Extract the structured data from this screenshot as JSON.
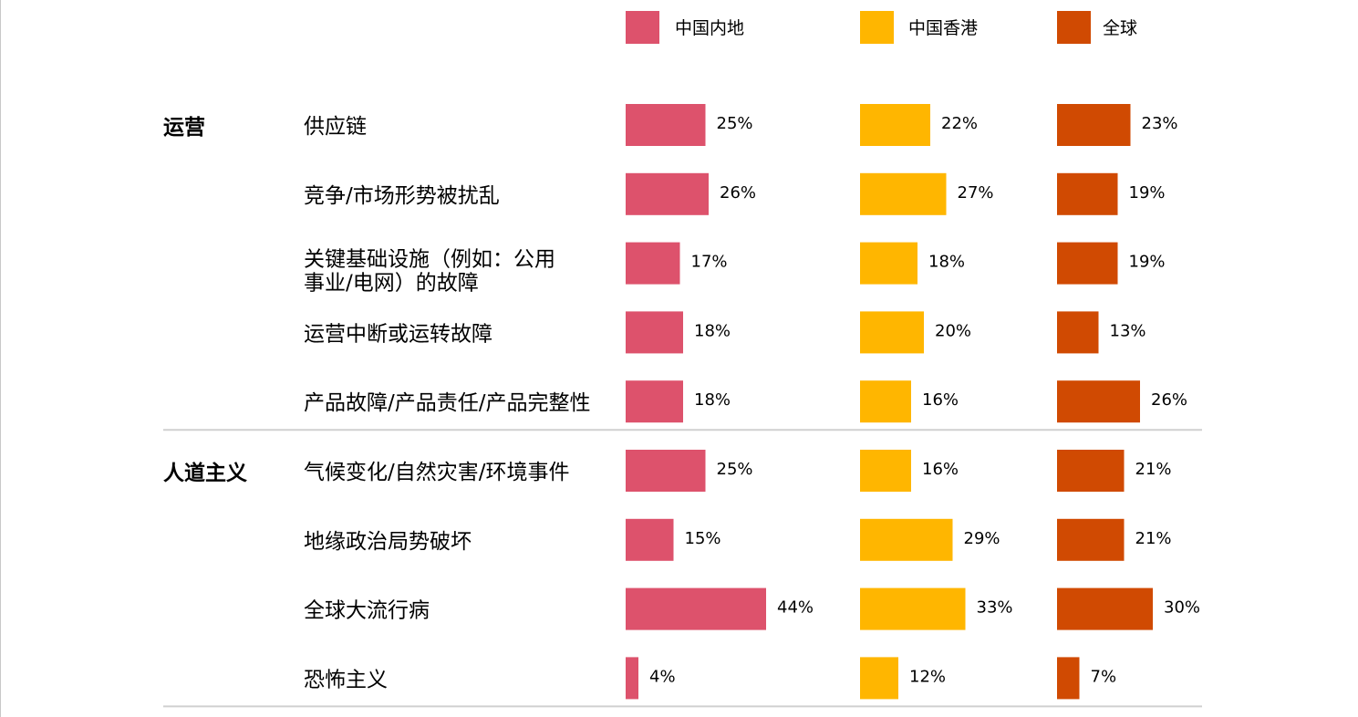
{
  "chart_data": {
    "type": "bar",
    "orientation": "horizontal",
    "series": [
      {
        "name": "中国内地",
        "color": "#dd526c"
      },
      {
        "name": "中国香港",
        "color": "#ffb600"
      },
      {
        "name": "全球",
        "color": "#d04a02"
      }
    ],
    "groups": [
      {
        "label": "运营",
        "rows": [
          {
            "label": [
              "供应链"
            ],
            "values": [
              "25%",
              "22%",
              "23%"
            ]
          },
          {
            "label": [
              "竞争/市场形势被扰乱"
            ],
            "values": [
              "26%",
              "27%",
              "19%"
            ]
          },
          {
            "label": [
              "关键基础设施（例如：公用",
              "事业/电网）的故障"
            ],
            "values": [
              "17%",
              "18%",
              "19%"
            ]
          },
          {
            "label": [
              "运营中断或运转故障"
            ],
            "values": [
              "18%",
              "20%",
              "13%"
            ]
          },
          {
            "label": [
              "产品故障/产品责任/产品完整性"
            ],
            "values": [
              "18%",
              "16%",
              "26%"
            ]
          }
        ]
      },
      {
        "label": "人道主义",
        "rows": [
          {
            "label": [
              "气候变化/自然灾害/环境事件"
            ],
            "values": [
              "25%",
              "16%",
              "21%"
            ]
          },
          {
            "label": [
              "地缘政治局势破坏"
            ],
            "values": [
              "15%",
              "29%",
              "21%"
            ]
          },
          {
            "label": [
              "全球大流行病"
            ],
            "values": [
              "44%",
              "33%",
              "30%"
            ]
          },
          {
            "label": [
              "恐怖主义"
            ],
            "values": [
              "4%",
              "12%",
              "7%"
            ]
          }
        ]
      }
    ]
  }
}
